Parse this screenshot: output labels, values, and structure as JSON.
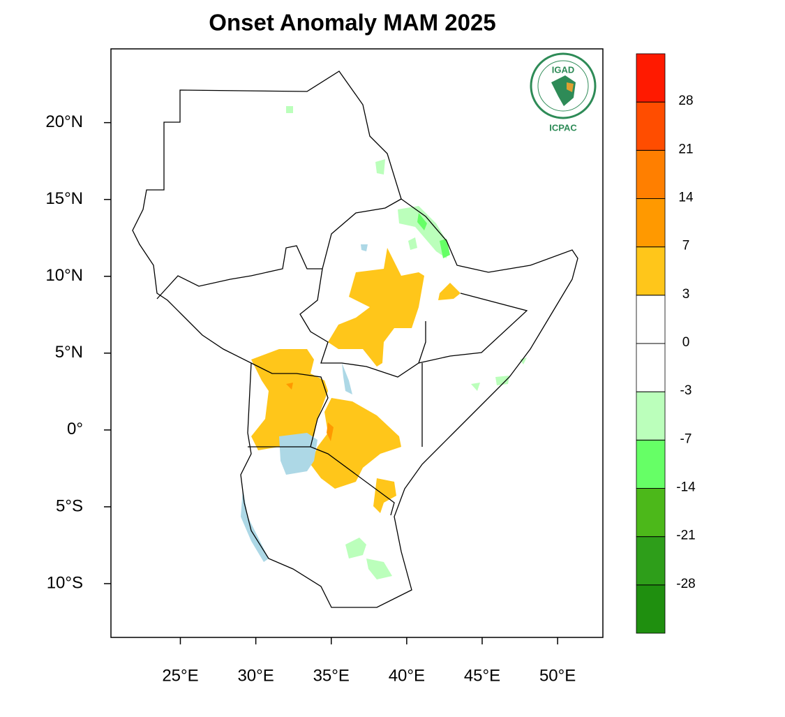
{
  "map": {
    "title": "Onset Anomaly MAM 2025",
    "xlim": [
      20.4,
      53
    ],
    "ylim": [
      -13.5,
      24.8
    ],
    "xticks": [
      {
        "value": 25,
        "label": "25°E"
      },
      {
        "value": 30,
        "label": "30°E"
      },
      {
        "value": 35,
        "label": "35°E"
      },
      {
        "value": 40,
        "label": "40°E"
      },
      {
        "value": 45,
        "label": "45°E"
      },
      {
        "value": 50,
        "label": "50°E"
      }
    ],
    "yticks": [
      {
        "value": 20,
        "label": "20°N"
      },
      {
        "value": 15,
        "label": "15°N"
      },
      {
        "value": 10,
        "label": "10°N"
      },
      {
        "value": 5,
        "label": "5°N"
      },
      {
        "value": 0,
        "label": "0°"
      },
      {
        "value": -5,
        "label": "5°S"
      },
      {
        "value": -10,
        "label": "10°S"
      }
    ],
    "colorbar": {
      "levels": [
        -28,
        -21,
        -14,
        -7,
        -3,
        0,
        3,
        7,
        14,
        21,
        28
      ],
      "colors": [
        "#1f8f0f",
        "#2e9e1a",
        "#4cb81a",
        "#66ff66",
        "#bbffbb",
        "#ffffff",
        "#ffffff",
        "#ffc61a",
        "#ff9900",
        "#ff7f00",
        "#ff4d00",
        "#ff1a00"
      ]
    },
    "logo": {
      "name": "IGAD",
      "caption": "ICPAC"
    }
  }
}
